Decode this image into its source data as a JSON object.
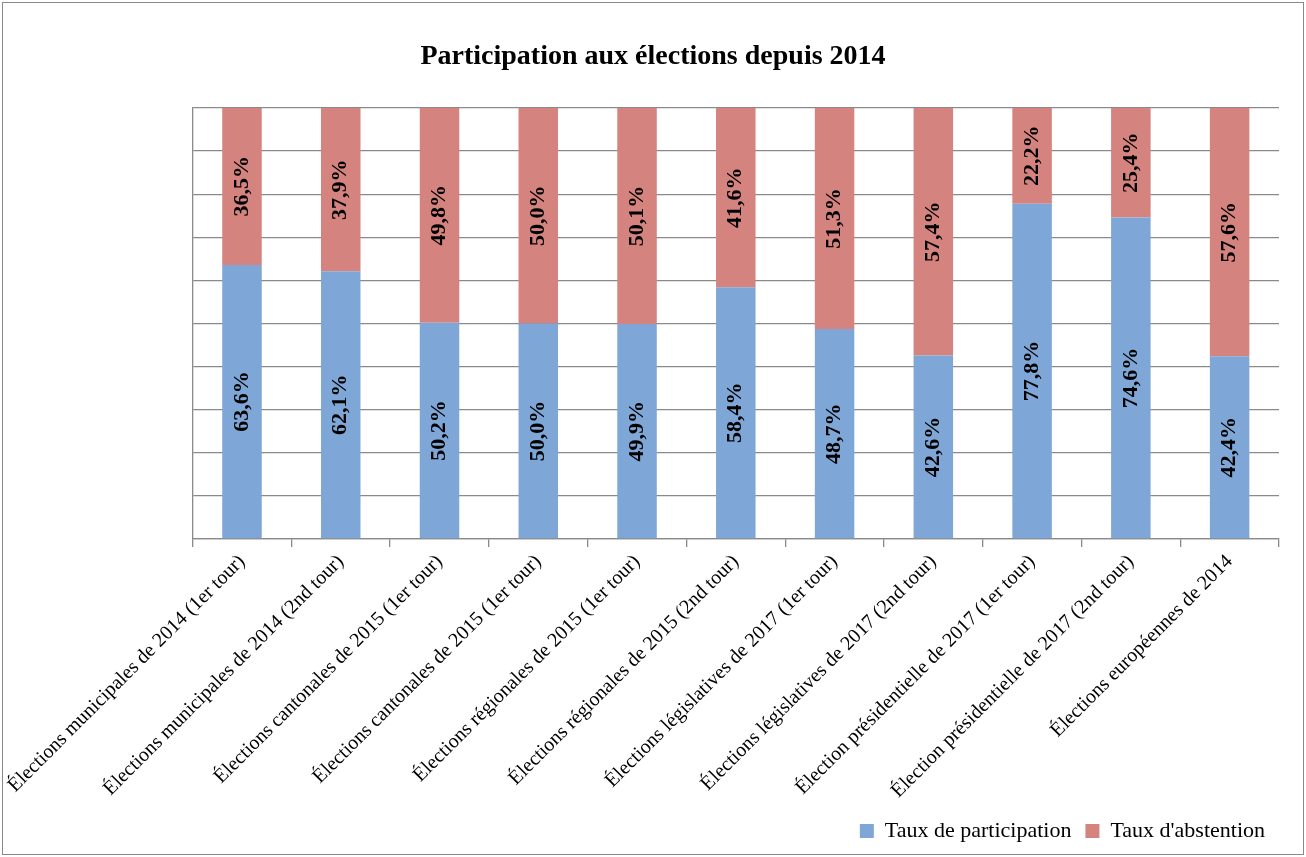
{
  "chart_data": {
    "type": "bar",
    "title": "Participation aux élections depuis 2014",
    "categories": [
      "Élections municipales de 2014 (1er tour)",
      "Élections municipales de 2014 (2nd tour)",
      "Élections cantonales de 2015 (1er tour)",
      "Élections cantonales de 2015 (1er tour)",
      "Élections régionales de 2015 (1er tour)",
      "Élections régionales de 2015 (2nd tour)",
      "Élections législatives de 2017 (1er tour)",
      "Élections législatives de 2017 (2nd tour)",
      "Élection présidentielle de 2017 (1er tour)",
      "Élection présidentielle de 2017 (2nd tour)",
      "Élections européennes de 2014"
    ],
    "stacked": true,
    "series": [
      {
        "name": "Taux de participation",
        "color": "#7ea6d6",
        "values": [
          63.6,
          62.1,
          50.2,
          50.0,
          49.9,
          58.4,
          48.7,
          42.6,
          77.8,
          74.6,
          42.4
        ],
        "value_labels": [
          "63,6%",
          "62,1%",
          "50,2%",
          "50,0%",
          "49,9%",
          "58,4%",
          "48,7%",
          "42,6%",
          "77,8%",
          "74,6%",
          "42,4%"
        ]
      },
      {
        "name": "Taux d'abstention",
        "color": "#d4837f",
        "values": [
          36.5,
          37.9,
          49.8,
          50.0,
          50.1,
          41.6,
          51.3,
          57.4,
          22.2,
          25.4,
          57.6
        ],
        "value_labels": [
          "36,5%",
          "37,9%",
          "49,8%",
          "50,0%",
          "50,1%",
          "41,6%",
          "51,3%",
          "57,4%",
          "22,2%",
          "25,4%",
          "57,6%"
        ]
      }
    ],
    "ylim": [
      0,
      100
    ],
    "yticks": [
      {
        "value": 0,
        "label": null
      },
      {
        "value": 10,
        "label": null
      },
      {
        "value": 20,
        "label": null
      },
      {
        "value": 30,
        "label": null
      },
      {
        "value": 40,
        "label": null
      },
      {
        "value": 50,
        "label": null
      },
      {
        "value": 60,
        "label": null
      },
      {
        "value": 70,
        "label": null
      },
      {
        "value": 80,
        "label": null
      },
      {
        "value": 90,
        "label": null
      },
      {
        "value": 100,
        "label": null
      }
    ],
    "tick_labels": "x",
    "grid": "y",
    "legend": "bottom right"
  }
}
